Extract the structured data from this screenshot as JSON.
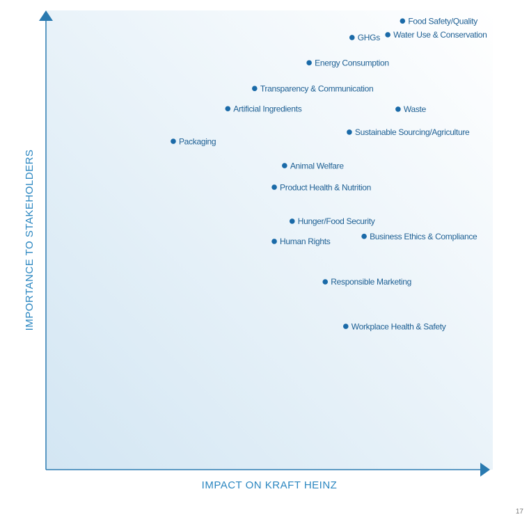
{
  "chart_data": {
    "type": "scatter",
    "xlabel": "IMPACT ON KRAFT HEINZ",
    "ylabel": "IMPORTANCE TO STAKEHOLDERS",
    "color": "#1a6aa8",
    "xlim": [
      0,
      100
    ],
    "ylim": [
      0,
      100
    ],
    "labels": [
      "Food Safety/Quality",
      "GHGs",
      "Water Use & Conservation",
      "Energy Consumption",
      "Transparency & Communication",
      "Artificial Ingredients",
      "Waste",
      "Sustainable Sourcing/Agriculture",
      "Packaging",
      "Animal Welfare",
      "Product Health & Nutrition",
      "Hunger/Food Security",
      "Business Ethics & Compliance",
      "Human Rights",
      "Responsible Marketing",
      "Workplace Health & Safety"
    ],
    "x": [
      79.8,
      68.5,
      76.5,
      58.9,
      46.7,
      40.7,
      78.8,
      67.9,
      28.5,
      53.4,
      51.1,
      55.1,
      71.2,
      51.1,
      62.5,
      67.1
    ],
    "values": [
      97.7,
      94.1,
      94.7,
      88.6,
      83.0,
      78.6,
      78.5,
      73.5,
      71.5,
      66.2,
      61.5,
      54.1,
      50.8,
      49.7,
      40.9,
      31.2
    ]
  },
  "page_number": "17"
}
